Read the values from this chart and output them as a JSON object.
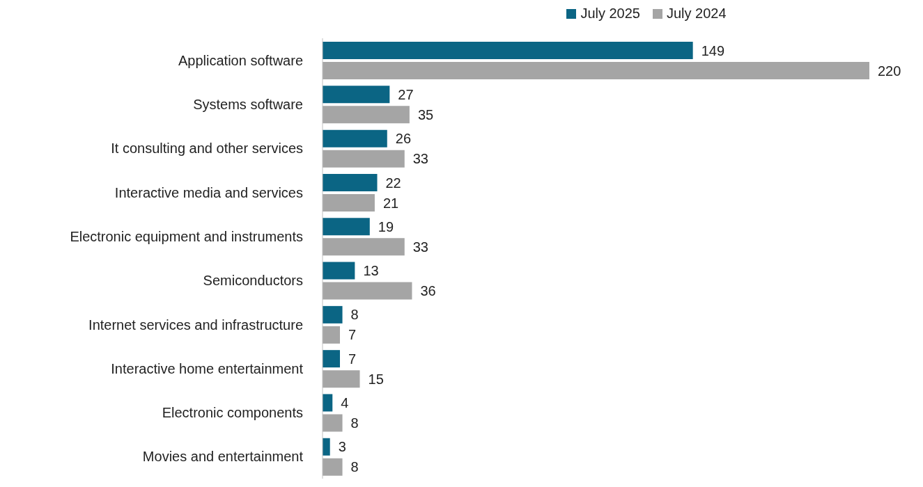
{
  "chart_data": {
    "type": "bar",
    "orientation": "horizontal",
    "legend": "top",
    "data_labels": true,
    "grid": false,
    "categories": [
      "Application software",
      "Systems software",
      "It consulting and other services",
      "Interactive media and services",
      "Electronic equipment and instruments",
      "Semiconductors",
      "Internet services and infrastructure",
      "Interactive home entertainment",
      "Electronic components",
      "Movies and entertainment"
    ],
    "series": [
      {
        "name": "July 2025",
        "color": "#0b6584",
        "values": [
          149,
          27,
          26,
          22,
          19,
          13,
          8,
          7,
          4,
          3
        ]
      },
      {
        "name": "July 2024",
        "color": "#a5a5a5",
        "values": [
          220,
          35,
          33,
          21,
          33,
          36,
          7,
          15,
          8,
          8
        ]
      }
    ]
  }
}
